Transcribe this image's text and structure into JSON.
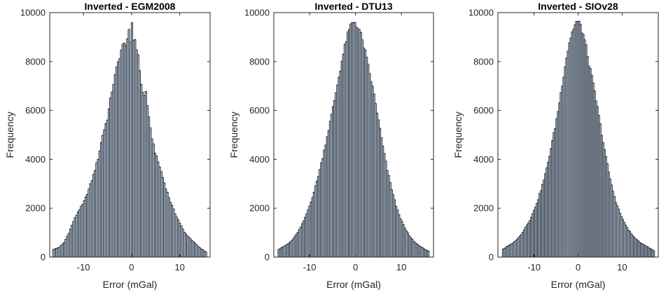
{
  "colors": {
    "bar_fill": "#c4d5ec",
    "bar_edge": "#000000",
    "axis": "#262626",
    "background": "#ffffff"
  },
  "chart_data": [
    {
      "type": "bar",
      "title": "Inverted - EGM2008",
      "xlabel": "Error (mGal)",
      "ylabel": "Frequency",
      "xlim": [
        -17,
        16.3
      ],
      "ylim": [
        0,
        10000
      ],
      "xticks": [
        -10,
        0,
        10
      ],
      "yticks": [
        0,
        2000,
        4000,
        6000,
        8000,
        10000
      ],
      "bin_range": [
        -16.4,
        15.5
      ],
      "shape": [
        [
          -16.4,
          300
        ],
        [
          -15,
          400
        ],
        [
          -14,
          600
        ],
        [
          -13,
          1000
        ],
        [
          -12,
          1500
        ],
        [
          -11,
          1900
        ],
        [
          -10,
          2200
        ],
        [
          -9,
          2700
        ],
        [
          -8,
          3300
        ],
        [
          -7,
          4000
        ],
        [
          -6,
          5000
        ],
        [
          -5,
          5700
        ],
        [
          -4,
          6900
        ],
        [
          -3,
          7800
        ],
        [
          -2,
          8600
        ],
        [
          -1,
          8800
        ],
        [
          -0.6,
          9300
        ],
        [
          -0.3,
          8400
        ],
        [
          0,
          9850
        ],
        [
          0.3,
          8900
        ],
        [
          0.8,
          8900
        ],
        [
          1.5,
          8000
        ],
        [
          2,
          7100
        ],
        [
          2.5,
          6500
        ],
        [
          3,
          6800
        ],
        [
          3.5,
          5800
        ],
        [
          4,
          5100
        ],
        [
          5,
          4200
        ],
        [
          6,
          3600
        ],
        [
          7,
          2900
        ],
        [
          8,
          2300
        ],
        [
          9,
          1800
        ],
        [
          10,
          1400
        ],
        [
          11,
          1000
        ],
        [
          12,
          800
        ],
        [
          13,
          600
        ],
        [
          14,
          400
        ],
        [
          15.5,
          200
        ]
      ]
    },
    {
      "type": "bar",
      "title": "Inverted - DTU13",
      "xlabel": "Error (mGal)",
      "ylabel": "Frequency",
      "xlim": [
        -17.8,
        17
      ],
      "ylim": [
        0,
        10000
      ],
      "xticks": [
        -10,
        0,
        10
      ],
      "yticks": [
        0,
        2000,
        4000,
        6000,
        8000,
        10000
      ],
      "bin_range": [
        -16.9,
        15.8
      ],
      "shape": [
        [
          -16.9,
          300
        ],
        [
          -16,
          400
        ],
        [
          -15,
          500
        ],
        [
          -14,
          650
        ],
        [
          -13,
          900
        ],
        [
          -12,
          1200
        ],
        [
          -11,
          1600
        ],
        [
          -10,
          2100
        ],
        [
          -9,
          2700
        ],
        [
          -8,
          3400
        ],
        [
          -7,
          4200
        ],
        [
          -6,
          5100
        ],
        [
          -5,
          6000
        ],
        [
          -4,
          7000
        ],
        [
          -3,
          8000
        ],
        [
          -2,
          8900
        ],
        [
          -1,
          9500
        ],
        [
          -0.3,
          9650
        ],
        [
          0,
          9600
        ],
        [
          1,
          9200
        ],
        [
          2,
          8500
        ],
        [
          3,
          7600
        ],
        [
          4,
          6700
        ],
        [
          5,
          5600
        ],
        [
          6,
          4500
        ],
        [
          7,
          3500
        ],
        [
          8,
          2700
        ],
        [
          9,
          2000
        ],
        [
          10,
          1500
        ],
        [
          11,
          1100
        ],
        [
          12,
          800
        ],
        [
          13,
          600
        ],
        [
          14,
          450
        ],
        [
          15,
          330
        ],
        [
          15.8,
          250
        ]
      ]
    },
    {
      "type": "bar",
      "title": "Inverted - SIOv28",
      "xlabel": "Error (mGal)",
      "ylabel": "Frequency",
      "xlim": [
        -18.2,
        18.2
      ],
      "ylim": [
        0,
        10000
      ],
      "xticks": [
        -10,
        0,
        10
      ],
      "yticks": [
        0,
        2000,
        4000,
        6000,
        8000,
        10000
      ],
      "bin_range": [
        -17.2,
        17.3
      ],
      "shape": [
        [
          -17.2,
          300
        ],
        [
          -16,
          450
        ],
        [
          -15,
          550
        ],
        [
          -14,
          700
        ],
        [
          -13,
          900
        ],
        [
          -12,
          1200
        ],
        [
          -11,
          1500
        ],
        [
          -10,
          1900
        ],
        [
          -9,
          2400
        ],
        [
          -8,
          3000
        ],
        [
          -7,
          3700
        ],
        [
          -6,
          4600
        ],
        [
          -5,
          5500
        ],
        [
          -4,
          6600
        ],
        [
          -3,
          7800
        ],
        [
          -2,
          8800
        ],
        [
          -1,
          9400
        ],
        [
          -0.3,
          9650
        ],
        [
          0.5,
          9500
        ],
        [
          1.5,
          8900
        ],
        [
          2.5,
          7900
        ],
        [
          3.5,
          7000
        ],
        [
          4.5,
          6000
        ],
        [
          5.5,
          4900
        ],
        [
          6.5,
          3900
        ],
        [
          7.5,
          3000
        ],
        [
          8.5,
          2300
        ],
        [
          9.5,
          1800
        ],
        [
          10.5,
          1400
        ],
        [
          11.5,
          1100
        ],
        [
          12.5,
          850
        ],
        [
          14,
          600
        ],
        [
          15.5,
          450
        ],
        [
          17.3,
          250
        ]
      ]
    }
  ]
}
